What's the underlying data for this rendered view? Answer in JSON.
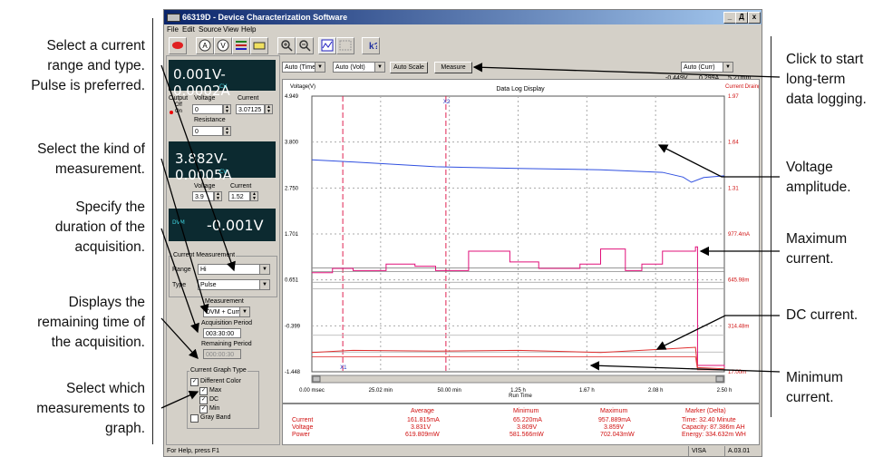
{
  "callouts_left": [
    {
      "lines": [
        "Select a current",
        "range and type.",
        "Pulse is preferred."
      ]
    },
    {
      "lines": [
        "Select the kind of",
        "measurement."
      ]
    },
    {
      "lines": [
        "Specify the",
        "duration of the",
        "acquisition."
      ]
    },
    {
      "lines": [
        "Displays the",
        "remaining time of",
        "the acquisition."
      ]
    },
    {
      "lines": [
        "Select which",
        "measurements to",
        "graph."
      ]
    }
  ],
  "callouts_right": [
    {
      "lines": [
        "Click to start",
        "long-term",
        "data logging."
      ]
    },
    {
      "lines": [
        "Voltage",
        "amplitude."
      ]
    },
    {
      "lines": [
        "Maximum",
        "current."
      ]
    },
    {
      "lines": [
        "DC current."
      ]
    },
    {
      "lines": [
        "Minimum",
        "current."
      ]
    }
  ],
  "window": {
    "title": "66319D - Device Characterization Software",
    "controls": [
      "_",
      "Д",
      "x"
    ]
  },
  "menu": [
    "File",
    "Edit",
    "Source",
    "View",
    "Help"
  ],
  "toolbar": {
    "icons": [
      "stop-icon",
      "ammeter-icon",
      "voltmeter-icon",
      "list-icon",
      "meter-icon",
      "zoom-in-icon",
      "zoom-out-icon",
      "graph-icon",
      "grid-icon",
      "help-icon"
    ]
  },
  "left_panel": {
    "display1": {
      "value": "0.001V-0.0002A",
      "mode": "CV"
    },
    "output_label": "Output",
    "output_opts": [
      "Off",
      "On"
    ],
    "voltage_label": "Voltage",
    "current_label": "Current",
    "voltage1": "0",
    "current1": "3.07125",
    "resistance_label": "Resistance",
    "resistance": "0",
    "display2": {
      "value": "3.882V-0.0005A",
      "mode": "CV"
    },
    "voltage2_label": "Voltage",
    "current2_label": "Current",
    "voltage2": "3.9",
    "current2": "1.52",
    "display3": {
      "prefix": "DVM",
      "value": "-0.001V"
    },
    "current_measurement_title": "Current Measurement",
    "range_label": "Range",
    "range_value": "Hi",
    "type_label": "Type",
    "type_value": "Pulse",
    "measurement_label": "Measurement",
    "measurement_value": "DVM + Curr",
    "acq_period_label": "Acquisition Period",
    "acq_period_value": "003:30:00",
    "remaining_label": "Remaining Period",
    "remaining_value": "000:00:30",
    "graph_type_title": "Current Graph Type",
    "checks": [
      {
        "label": "Different Color",
        "checked": true
      },
      {
        "label": "Max",
        "checked": true
      },
      {
        "label": "DC",
        "checked": true
      },
      {
        "label": "Min",
        "checked": true
      },
      {
        "label": "Gray Band",
        "checked": false
      }
    ]
  },
  "chart_toolbar": {
    "time_select": "Auto (Time)",
    "volt_select": "Auto (Volt)",
    "autoscale": "Auto Scale",
    "measure": "Measure",
    "curr_select": "Auto (Curr)"
  },
  "readout": {
    "a": "-0.449V",
    "b": "0.299A",
    "c": "5.21mm"
  },
  "chart_data": {
    "type": "line",
    "title": "Data Log Display",
    "ylabel": "Voltage(V)",
    "y2label": "Current Drain(A)",
    "xlabel": "Run Time",
    "y_ticks": [
      "4.949",
      "3.800",
      "2.750",
      "1.701",
      "0.651",
      "-0.399",
      "-1.448"
    ],
    "y2_ticks": [
      "1.97",
      "1.64",
      "1.31",
      "977.4mA",
      "645.98m",
      "314.48m",
      "17.00m"
    ],
    "x_ticks": [
      "0.00 msec",
      "25.02 min",
      "50.00 min",
      "1.25 h",
      "1.67 h",
      "2.08 h",
      "2.50 h"
    ],
    "markers": [
      "X1",
      "X2"
    ],
    "ylim": [
      -1.448,
      4.949
    ],
    "series": [
      {
        "name": "Voltage",
        "color": "#3050e0",
        "x": [
          0,
          0.1,
          0.3,
          0.5,
          0.7,
          0.85,
          0.9,
          0.92,
          0.95,
          1.0
        ],
        "y": [
          3.47,
          3.42,
          3.31,
          3.27,
          3.24,
          3.18,
          3.07,
          2.95,
          3.06,
          3.1
        ]
      },
      {
        "name": "Maximum current",
        "color": "#e0107a"
      },
      {
        "name": "DC current",
        "color": "#e03030"
      },
      {
        "name": "Minimum current",
        "color": "#e03030"
      }
    ]
  },
  "stats": {
    "labels": [
      "Current",
      "Voltage",
      "Power"
    ],
    "average_title": "Average",
    "average": [
      "161.815mA",
      "3.831V",
      "619.809mW"
    ],
    "minimum_title": "Minimum",
    "minimum": [
      "65.220mA",
      "3.809V",
      "581.566mW"
    ],
    "maximum_title": "Maximum",
    "maximum": [
      "957.889mA",
      "3.859V",
      "702.043mW"
    ],
    "marker_title": "Marker (Delta)",
    "marker": [
      "Time: 32.40 Minute",
      "Capacity: 87.386m AH",
      "Energy: 334.632m WH"
    ]
  },
  "status": {
    "help": "For Help, press F1",
    "visa": "VISA",
    "version": "A.03.01"
  }
}
